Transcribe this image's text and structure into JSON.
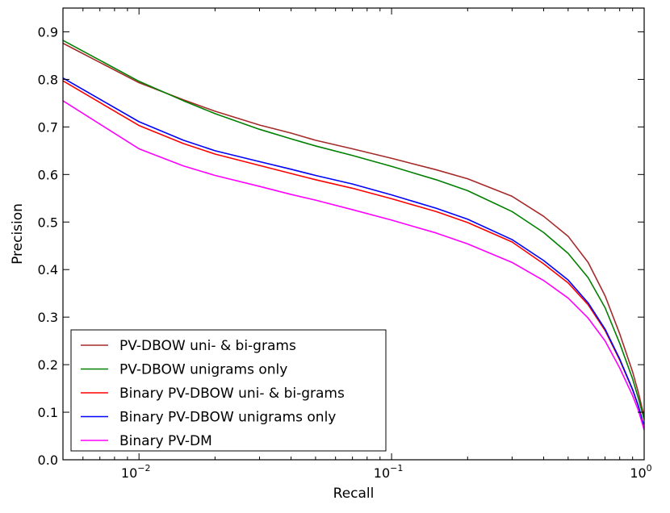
{
  "chart_data": {
    "type": "line",
    "title": "",
    "xlabel": "Recall",
    "ylabel": "Precision",
    "xscale": "log",
    "xlim": [
      0.005,
      1.0
    ],
    "ylim": [
      0.0,
      0.95
    ],
    "grid": false,
    "legend_position": "bottom-left",
    "yticks": [
      0.0,
      0.1,
      0.2,
      0.3,
      0.4,
      0.5,
      0.6,
      0.7,
      0.8,
      0.9
    ],
    "ytick_labels": [
      "0.0",
      "0.1",
      "0.2",
      "0.3",
      "0.4",
      "0.5",
      "0.6",
      "0.7",
      "0.8",
      "0.9"
    ],
    "xticks": [
      {
        "value": 0.01,
        "base": "10",
        "exp": "−2"
      },
      {
        "value": 0.1,
        "base": "10",
        "exp": "−1"
      },
      {
        "value": 1.0,
        "base": "10",
        "exp": "0"
      }
    ],
    "x": [
      0.005,
      0.01,
      0.015,
      0.02,
      0.03,
      0.04,
      0.05,
      0.07,
      0.1,
      0.15,
      0.2,
      0.3,
      0.4,
      0.5,
      0.6,
      0.7,
      0.8,
      0.9,
      0.95,
      1.0
    ],
    "series": [
      {
        "name": "PV-DBOW uni- & bi-grams",
        "color": "#a52a2a",
        "values": [
          0.876,
          0.793,
          0.757,
          0.733,
          0.704,
          0.687,
          0.672,
          0.654,
          0.634,
          0.61,
          0.591,
          0.554,
          0.512,
          0.47,
          0.415,
          0.345,
          0.265,
          0.185,
          0.14,
          0.09
        ]
      },
      {
        "name": "PV-DBOW unigrams only",
        "color": "#008000",
        "values": [
          0.882,
          0.796,
          0.755,
          0.728,
          0.695,
          0.675,
          0.66,
          0.64,
          0.617,
          0.589,
          0.566,
          0.522,
          0.478,
          0.434,
          0.383,
          0.32,
          0.245,
          0.17,
          0.128,
          0.085
        ]
      },
      {
        "name": "Binary PV-DBOW uni- & bi-grams",
        "color": "#ff0000",
        "values": [
          0.797,
          0.703,
          0.665,
          0.643,
          0.619,
          0.602,
          0.589,
          0.571,
          0.549,
          0.522,
          0.499,
          0.458,
          0.412,
          0.372,
          0.326,
          0.272,
          0.21,
          0.147,
          0.112,
          0.07
        ]
      },
      {
        "name": "Binary PV-DBOW unigrams only",
        "color": "#0000ff",
        "values": [
          0.803,
          0.711,
          0.672,
          0.65,
          0.627,
          0.611,
          0.598,
          0.58,
          0.557,
          0.529,
          0.506,
          0.463,
          0.419,
          0.378,
          0.33,
          0.275,
          0.212,
          0.148,
          0.112,
          0.068
        ]
      },
      {
        "name": "Binary PV-DM",
        "color": "#ff00ff",
        "values": [
          0.755,
          0.654,
          0.618,
          0.598,
          0.575,
          0.558,
          0.546,
          0.526,
          0.504,
          0.477,
          0.454,
          0.415,
          0.377,
          0.34,
          0.298,
          0.25,
          0.193,
          0.135,
          0.103,
          0.063
        ]
      }
    ]
  }
}
